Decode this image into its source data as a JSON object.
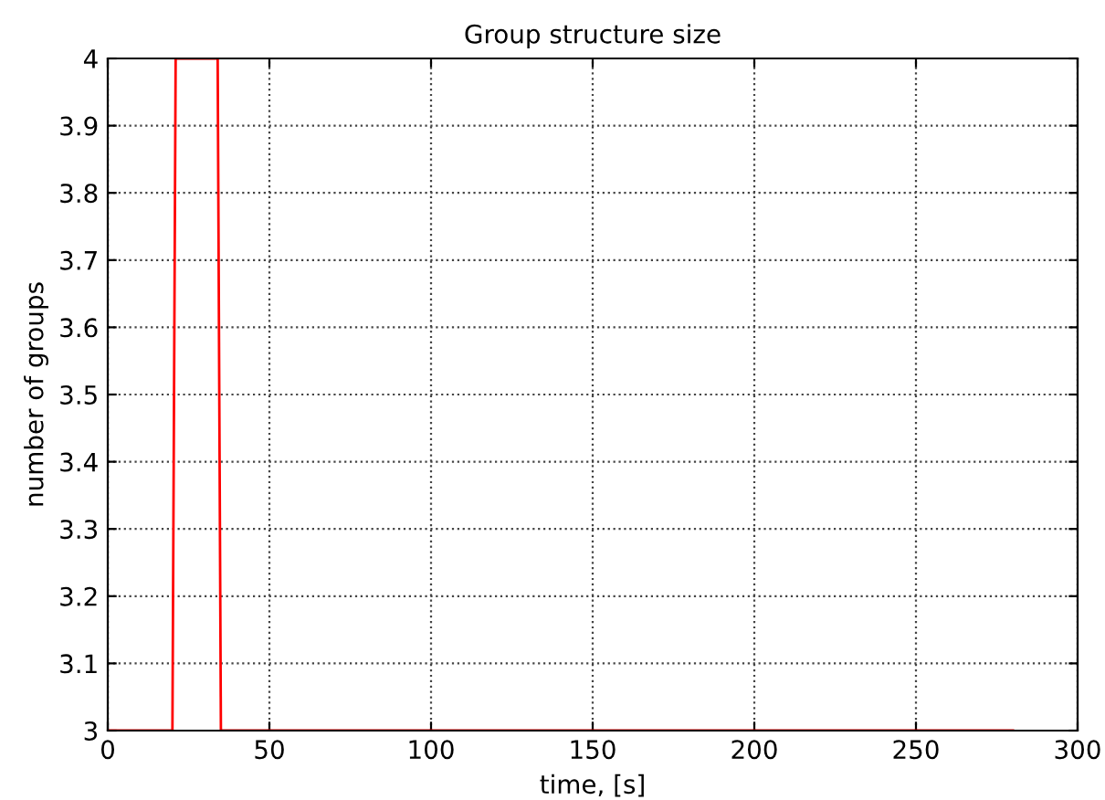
{
  "chart_data": {
    "type": "line",
    "title": "Group structure size",
    "xlabel": "time, [s]",
    "ylabel": "number of groups",
    "series": [
      {
        "color": "#ff0000",
        "x": [
          0,
          20,
          21,
          34,
          35,
          280
        ],
        "values": [
          3,
          3,
          4,
          4,
          3,
          3
        ]
      }
    ],
    "xlim": [
      0,
      300
    ],
    "xticks": [
      0,
      50,
      100,
      150,
      200,
      250,
      300
    ],
    "ylim": [
      3,
      4
    ],
    "yticks": [
      3,
      3.1,
      3.2,
      3.3,
      3.4,
      3.5,
      3.6,
      3.7,
      3.8,
      3.9,
      4
    ],
    "grid": true,
    "line_style": "solid",
    "marker": "none"
  }
}
